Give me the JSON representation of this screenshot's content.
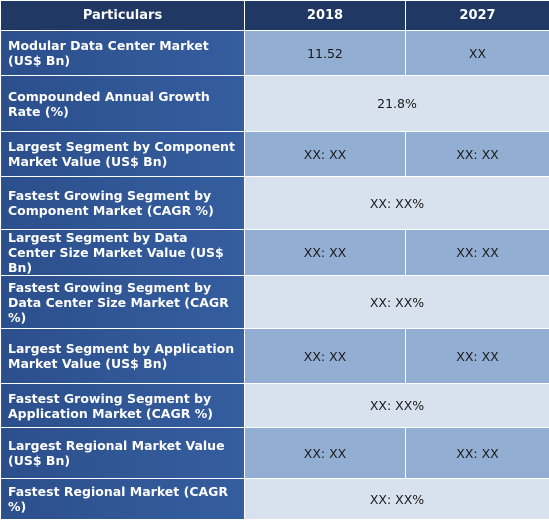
{
  "header": {
    "particulars": "Particulars",
    "year1": "2018",
    "year2": "2027"
  },
  "rows": [
    {
      "label": "Modular Data Center Market (US$ Bn)",
      "v2018": "11.52",
      "v2027": "XX"
    },
    {
      "label": "Compounded Annual Growth Rate (%)",
      "merged": "21.8%"
    },
    {
      "label": "Largest Segment by Component Market Value (US$ Bn)",
      "v2018": "XX: XX",
      "v2027": "XX: XX"
    },
    {
      "label": "Fastest Growing Segment by Component Market (CAGR %)",
      "merged": "XX: XX%"
    },
    {
      "label": "Largest Segment by Data Center Size Market Value (US$ Bn)",
      "v2018": "XX: XX",
      "v2027": "XX: XX"
    },
    {
      "label": "Fastest Growing Segment by Data Center Size Market (CAGR %)",
      "merged": "XX: XX%"
    },
    {
      "label": "Largest Segment by Application Market Value (US$ Bn)",
      "v2018": "XX: XX",
      "v2027": "XX: XX"
    },
    {
      "label": "Fastest Growing Segment by Application Market (CAGR %)",
      "merged": "XX: XX%"
    },
    {
      "label": "Largest Regional Market Value (US$ Bn)",
      "v2018": "XX: XX",
      "v2027": "XX: XX"
    },
    {
      "label": "Fastest Regional Market (CAGR %)",
      "merged": "XX: XX%"
    }
  ]
}
